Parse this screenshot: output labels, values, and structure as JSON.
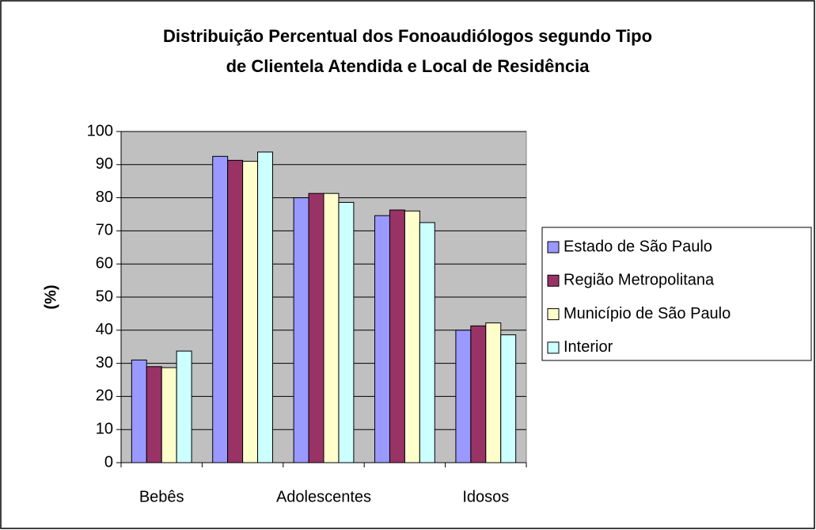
{
  "chart_data": {
    "type": "bar",
    "title": [
      "Distribuição Percentual dos Fonoaudiólogos segundo Tipo",
      "de Clientela Atendida e Local de Residência"
    ],
    "y_label": "(%)",
    "categories": [
      "Bebês",
      null,
      "Adolescentes",
      null,
      "Idosos"
    ],
    "series": [
      {
        "name": "Estado de São Paulo",
        "color": "#9999ff",
        "values": [
          31,
          92.5,
          80,
          74.6,
          40
        ]
      },
      {
        "name": "Região Metropolitana",
        "color": "#993366",
        "values": [
          29,
          91.3,
          81.3,
          76.3,
          41.3
        ]
      },
      {
        "name": "Município de São Paulo",
        "color": "#ffffcc",
        "values": [
          28.7,
          91,
          81.3,
          76,
          42.2
        ]
      },
      {
        "name": "Interior",
        "color": "#ccffff",
        "values": [
          33.7,
          93.8,
          78.6,
          72.5,
          38.6
        ]
      }
    ],
    "ylim": [
      0,
      100
    ],
    "yticks": [
      0,
      10,
      20,
      30,
      40,
      50,
      60,
      70,
      80,
      90,
      100
    ],
    "grid": true,
    "legend": "right"
  }
}
